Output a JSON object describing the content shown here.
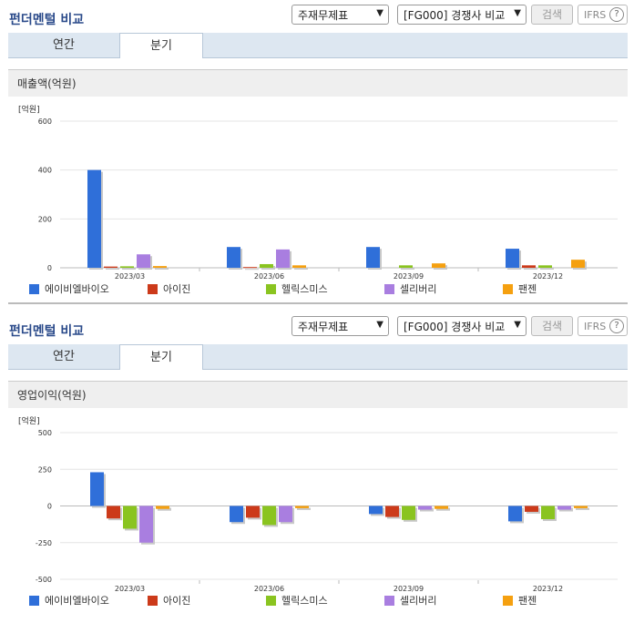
{
  "panels": [
    {
      "title": "펀더멘털 비교",
      "select_statement": "주재무제표",
      "select_compare": "[FG000] 경쟁사 비교",
      "search_label": "검색",
      "ifrs_label": "IFRS",
      "help_label": "?",
      "tabs": [
        "연간",
        "분기"
      ],
      "active_tab": "분기",
      "metric_title": "매출액(억원)"
    },
    {
      "title": "펀더멘털 비교",
      "select_statement": "주재무제표",
      "select_compare": "[FG000] 경쟁사 비교",
      "search_label": "검색",
      "ifrs_label": "IFRS",
      "help_label": "?",
      "tabs": [
        "연간",
        "분기"
      ],
      "active_tab": "분기",
      "metric_title": "영업이익(억원)"
    }
  ],
  "colors": {
    "에이비엘바이오": "#2f6fd9",
    "아이진": "#cc3a1a",
    "헬릭스미스": "#8ac420",
    "셀리버리": "#a97ee0",
    "팬젠": "#f5a010"
  },
  "chart_data": [
    {
      "type": "bar",
      "unit_label": "[억원]",
      "categories": [
        "2023/03",
        "2023/06",
        "2023/09",
        "2023/12"
      ],
      "ylim": [
        0,
        600
      ],
      "yticks": [
        0,
        200,
        400,
        600
      ],
      "grid": true,
      "legend_position": "bottom",
      "series": [
        {
          "name": "에이비엘바이오",
          "values": [
            400,
            85,
            85,
            78
          ]
        },
        {
          "name": "아이진",
          "values": [
            5,
            3,
            0,
            10
          ]
        },
        {
          "name": "헬릭스미스",
          "values": [
            6,
            15,
            10,
            10
          ]
        },
        {
          "name": "셀리버리",
          "values": [
            55,
            75,
            0,
            0
          ]
        },
        {
          "name": "팬젠",
          "values": [
            7,
            10,
            18,
            33
          ]
        }
      ]
    },
    {
      "type": "bar",
      "unit_label": "[억원]",
      "categories": [
        "2023/03",
        "2023/06",
        "2023/09",
        "2023/12"
      ],
      "ylim": [
        -500,
        500
      ],
      "yticks": [
        -500,
        -250,
        0,
        250,
        500
      ],
      "grid": true,
      "legend_position": "bottom",
      "series": [
        {
          "name": "에이비엘바이오",
          "values": [
            230,
            -110,
            -55,
            -105
          ]
        },
        {
          "name": "아이진",
          "values": [
            -85,
            -80,
            -75,
            -40
          ]
        },
        {
          "name": "헬릭스미스",
          "values": [
            -155,
            -130,
            -95,
            -90
          ]
        },
        {
          "name": "셀리버리",
          "values": [
            -250,
            -110,
            -25,
            -25
          ]
        },
        {
          "name": "팬젠",
          "values": [
            -20,
            -15,
            -20,
            -15
          ]
        }
      ]
    }
  ]
}
